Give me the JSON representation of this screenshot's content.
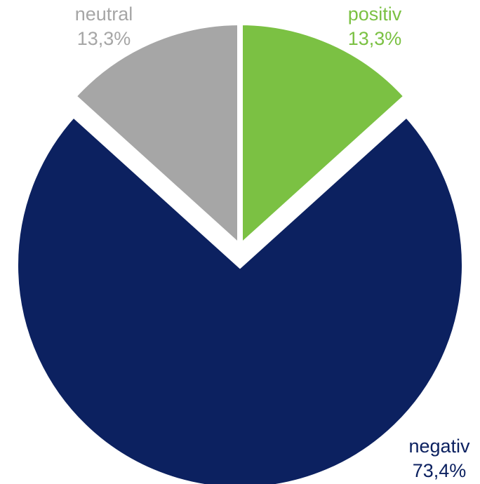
{
  "chart_data": {
    "type": "pie",
    "title": "",
    "categories": [
      "positiv",
      "negativ",
      "neutral"
    ],
    "values": [
      13.3,
      73.4,
      13.3
    ],
    "value_labels": [
      "13,3%",
      "73,4%",
      "13,3%"
    ],
    "colors": [
      "#7bc143",
      "#0c2160",
      "#a6a6a6"
    ],
    "label_colors": [
      "#7bc143",
      "#0c2160",
      "#a6a6a6"
    ],
    "start_angle_deg": 0,
    "direction": "clockwise",
    "exploded": true,
    "legend": "none"
  }
}
